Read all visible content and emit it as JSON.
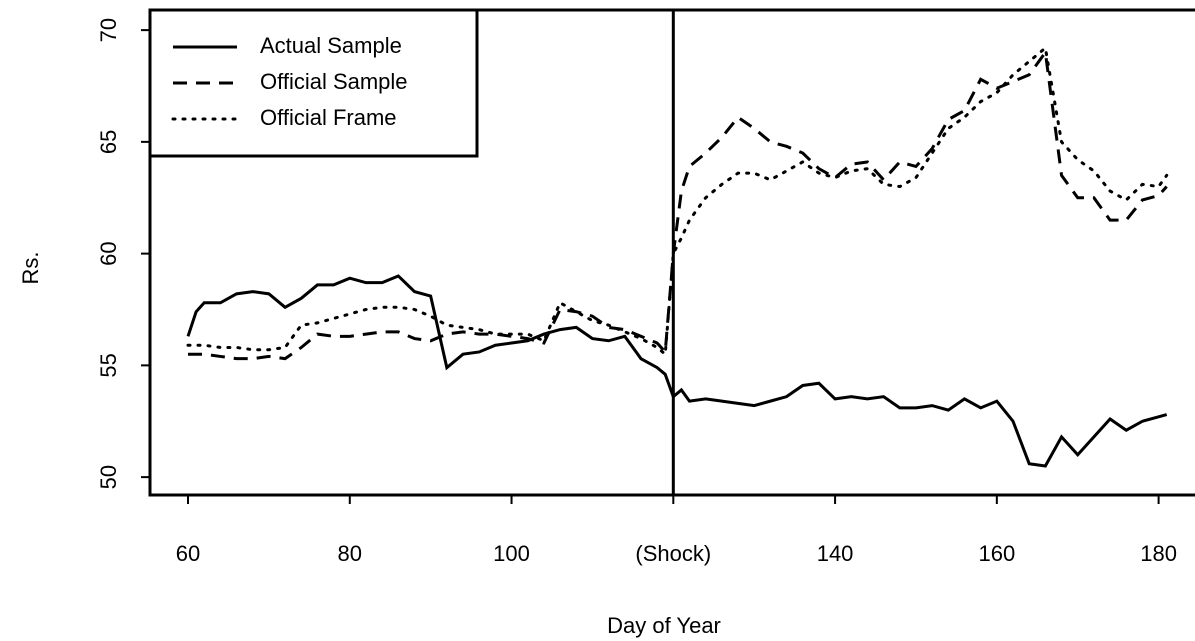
{
  "chart_data": {
    "type": "line",
    "xlabel": "Day of Year",
    "ylabel": "Rs.",
    "x": [
      60,
      61,
      62,
      64,
      66,
      68,
      70,
      72,
      74,
      76,
      78,
      80,
      82,
      84,
      86,
      88,
      90,
      92,
      94,
      96,
      98,
      100,
      102,
      104,
      106,
      108,
      110,
      112,
      114,
      116,
      118,
      119,
      120,
      121,
      122,
      124,
      126,
      128,
      130,
      132,
      134,
      136,
      138,
      140,
      142,
      144,
      146,
      148,
      150,
      152,
      154,
      156,
      158,
      160,
      162,
      164,
      166,
      168,
      170,
      172,
      174,
      176,
      178,
      180,
      181
    ],
    "series": [
      {
        "name": "Actual Sample",
        "color": "#000000",
        "linestyle": "solid",
        "values": [
          56.3,
          57.4,
          57.8,
          57.8,
          58.2,
          58.3,
          58.2,
          57.6,
          58.0,
          58.6,
          58.6,
          58.9,
          58.7,
          58.7,
          59.0,
          58.3,
          58.1,
          54.9,
          55.5,
          55.6,
          55.9,
          56.0,
          56.1,
          56.4,
          56.6,
          56.7,
          56.2,
          56.1,
          56.3,
          55.3,
          54.9,
          54.6,
          53.6,
          53.9,
          53.4,
          53.5,
          53.4,
          53.3,
          53.2,
          53.4,
          53.6,
          54.1,
          54.2,
          53.5,
          53.6,
          53.5,
          53.6,
          53.1,
          53.1,
          53.2,
          53.0,
          53.5,
          53.1,
          53.4,
          52.5,
          50.6,
          50.5,
          51.8,
          51.0,
          51.8,
          52.6,
          52.1,
          52.5,
          52.7,
          52.8
        ]
      },
      {
        "name": "Official Sample",
        "color": "#000000",
        "linestyle": "dashed",
        "values": [
          55.5,
          55.5,
          55.5,
          55.4,
          55.3,
          55.3,
          55.4,
          55.3,
          55.8,
          56.4,
          56.3,
          56.3,
          56.4,
          56.5,
          56.5,
          56.2,
          56.1,
          56.4,
          56.5,
          56.4,
          56.4,
          56.3,
          56.2,
          56.0,
          57.5,
          57.4,
          57.2,
          56.7,
          56.6,
          56.3,
          56.0,
          55.6,
          60.0,
          62.8,
          63.9,
          64.5,
          65.2,
          66.1,
          65.6,
          65.0,
          64.8,
          64.5,
          63.8,
          63.4,
          64.0,
          64.1,
          63.3,
          64.1,
          63.9,
          64.7,
          66.0,
          66.4,
          67.8,
          67.4,
          67.7,
          68.0,
          69.0,
          63.5,
          62.5,
          62.5,
          61.5,
          61.5,
          62.4,
          62.6,
          63.0
        ]
      },
      {
        "name": "Official Frame",
        "color": "#000000",
        "linestyle": "dotted",
        "values": [
          55.9,
          55.9,
          55.9,
          55.8,
          55.8,
          55.7,
          55.7,
          55.8,
          56.8,
          56.9,
          57.1,
          57.3,
          57.5,
          57.6,
          57.6,
          57.5,
          57.2,
          56.8,
          56.7,
          56.6,
          56.4,
          56.4,
          56.4,
          56.1,
          57.8,
          57.4,
          57.0,
          56.8,
          56.5,
          56.2,
          55.8,
          55.5,
          60.0,
          60.7,
          61.5,
          62.5,
          63.1,
          63.6,
          63.6,
          63.3,
          63.7,
          64.1,
          63.6,
          63.4,
          63.7,
          63.8,
          63.1,
          63.0,
          63.4,
          64.5,
          65.6,
          66.1,
          66.8,
          67.2,
          68.0,
          68.6,
          69.2,
          65.0,
          64.2,
          63.7,
          62.8,
          62.4,
          63.1,
          63.0,
          63.5
        ]
      }
    ],
    "xlim": [
      55.3,
      184.5
    ],
    "ylim": [
      49.2,
      70.9
    ],
    "xticks": [
      60,
      80,
      100,
      {
        "value": 120,
        "label": "(Shock)"
      },
      140,
      160,
      180
    ],
    "yticks": [
      50,
      55,
      60,
      65,
      70
    ],
    "vline": 120,
    "legend": "top-left"
  }
}
